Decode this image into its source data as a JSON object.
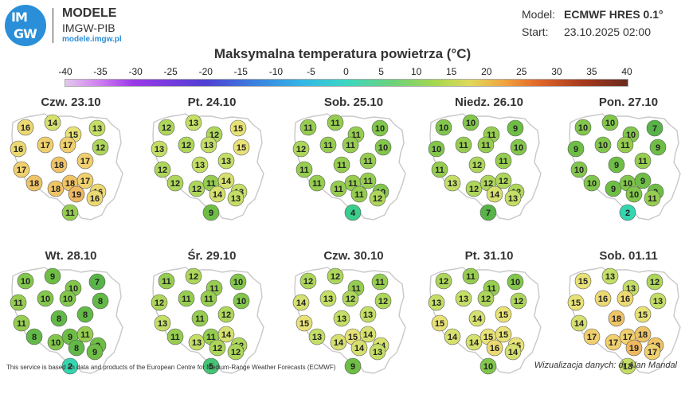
{
  "logo": {
    "line1": "IM",
    "line2": "GW"
  },
  "brand": {
    "name": "MODELE",
    "org": "IMGW-PIB",
    "url": "modele.imgw.pl"
  },
  "model": {
    "label": "Model:",
    "value": "ECMWF HRES 0.1°"
  },
  "start": {
    "label": "Start:",
    "value": "23.10.2025 02:00"
  },
  "title": "Maksymalna temperatura powietrza (°C)",
  "scale": {
    "ticks": [
      "-40",
      "-35",
      "-30",
      "-25",
      "-20",
      "-15",
      "-10",
      "-5",
      "0",
      "5",
      "10",
      "15",
      "20",
      "25",
      "30",
      "35",
      "40"
    ]
  },
  "panels": [
    {
      "date": "Czw. 23.10",
      "values": [
        16,
        14,
        15,
        13,
        16,
        17,
        17,
        12,
        17,
        18,
        17,
        18,
        18,
        18,
        17,
        16,
        19,
        16,
        11
      ]
    },
    {
      "date": "Pt. 24.10",
      "values": [
        12,
        13,
        12,
        15,
        13,
        12,
        13,
        15,
        12,
        13,
        13,
        12,
        12,
        11,
        14,
        13,
        14,
        13,
        9
      ]
    },
    {
      "date": "Sob. 25.10",
      "values": [
        11,
        11,
        11,
        10,
        12,
        11,
        11,
        10,
        11,
        11,
        11,
        11,
        11,
        11,
        11,
        10,
        11,
        12,
        4
      ]
    },
    {
      "date": "Niedz. 26.10",
      "values": [
        10,
        10,
        11,
        9,
        10,
        11,
        11,
        10,
        11,
        12,
        11,
        13,
        12,
        12,
        12,
        12,
        14,
        13,
        7
      ]
    },
    {
      "date": "Pon. 27.10",
      "values": [
        10,
        10,
        10,
        7,
        9,
        10,
        11,
        9,
        10,
        9,
        11,
        10,
        9,
        10,
        9,
        9,
        10,
        11,
        2
      ]
    },
    {
      "date": "Wt. 28.10",
      "values": [
        10,
        9,
        10,
        7,
        11,
        10,
        10,
        8,
        11,
        8,
        8,
        8,
        10,
        9,
        11,
        9,
        8,
        9,
        2
      ]
    },
    {
      "date": "Śr. 29.10",
      "values": [
        11,
        12,
        11,
        10,
        12,
        11,
        11,
        10,
        13,
        11,
        12,
        11,
        13,
        11,
        14,
        12,
        12,
        12,
        5
      ]
    },
    {
      "date": "Czw. 30.10",
      "values": [
        12,
        12,
        11,
        11,
        14,
        13,
        12,
        12,
        15,
        13,
        13,
        13,
        14,
        15,
        14,
        14,
        14,
        13,
        9
      ]
    },
    {
      "date": "Pt. 31.10",
      "values": [
        12,
        11,
        11,
        10,
        13,
        13,
        12,
        12,
        15,
        14,
        15,
        14,
        14,
        15,
        15,
        15,
        16,
        14,
        10
      ]
    },
    {
      "date": "Sob. 01.11",
      "values": [
        15,
        13,
        13,
        12,
        15,
        16,
        16,
        13,
        14,
        18,
        15,
        17,
        17,
        17,
        18,
        18,
        19,
        17,
        13
      ]
    }
  ],
  "footer": "This service is based on data and products of the European Centre for Medium-Range Weather Forecasts (ECMWF)",
  "credit": "Wizualizacja danych: dr Alan Mandal"
}
